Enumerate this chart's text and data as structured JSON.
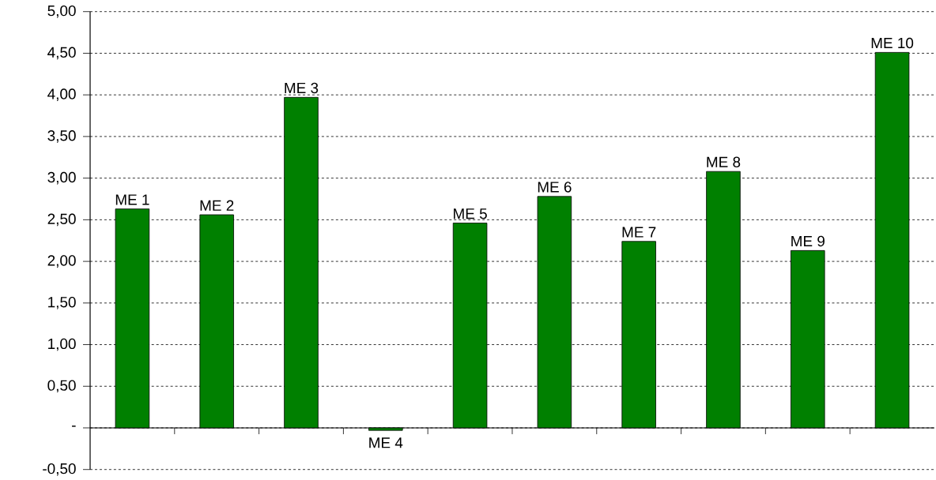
{
  "chart_data": {
    "type": "bar",
    "categories": [
      null,
      null,
      null,
      null,
      null,
      null,
      null,
      null,
      null,
      null
    ],
    "values": [
      2.63,
      2.56,
      3.97,
      -0.03,
      2.46,
      2.78,
      2.24,
      3.08,
      2.13,
      4.51
    ],
    "value_labels": [
      "ME 1",
      "ME 2",
      "ME 3",
      "ME 4",
      "ME 5",
      "ME 6",
      "ME 7",
      "ME 8",
      "ME 9",
      "ME 10"
    ],
    "color": "#008000",
    "ylim": [
      -0.5,
      5
    ],
    "yticks": [
      {
        "value": -0.5,
        "label": "-0,50"
      },
      {
        "value": 0,
        "label": "-"
      },
      {
        "value": 0.5,
        "label": "0,50"
      },
      {
        "value": 1,
        "label": "1,00"
      },
      {
        "value": 1.5,
        "label": "1,50"
      },
      {
        "value": 2,
        "label": "2,00"
      },
      {
        "value": 2.5,
        "label": "2,50"
      },
      {
        "value": 3,
        "label": "3,00"
      },
      {
        "value": 3.5,
        "label": "3,50"
      },
      {
        "value": 4,
        "label": "4,00"
      },
      {
        "value": 4.5,
        "label": "4,50"
      },
      {
        "value": 5,
        "label": "5,00"
      }
    ],
    "grid": "y"
  }
}
